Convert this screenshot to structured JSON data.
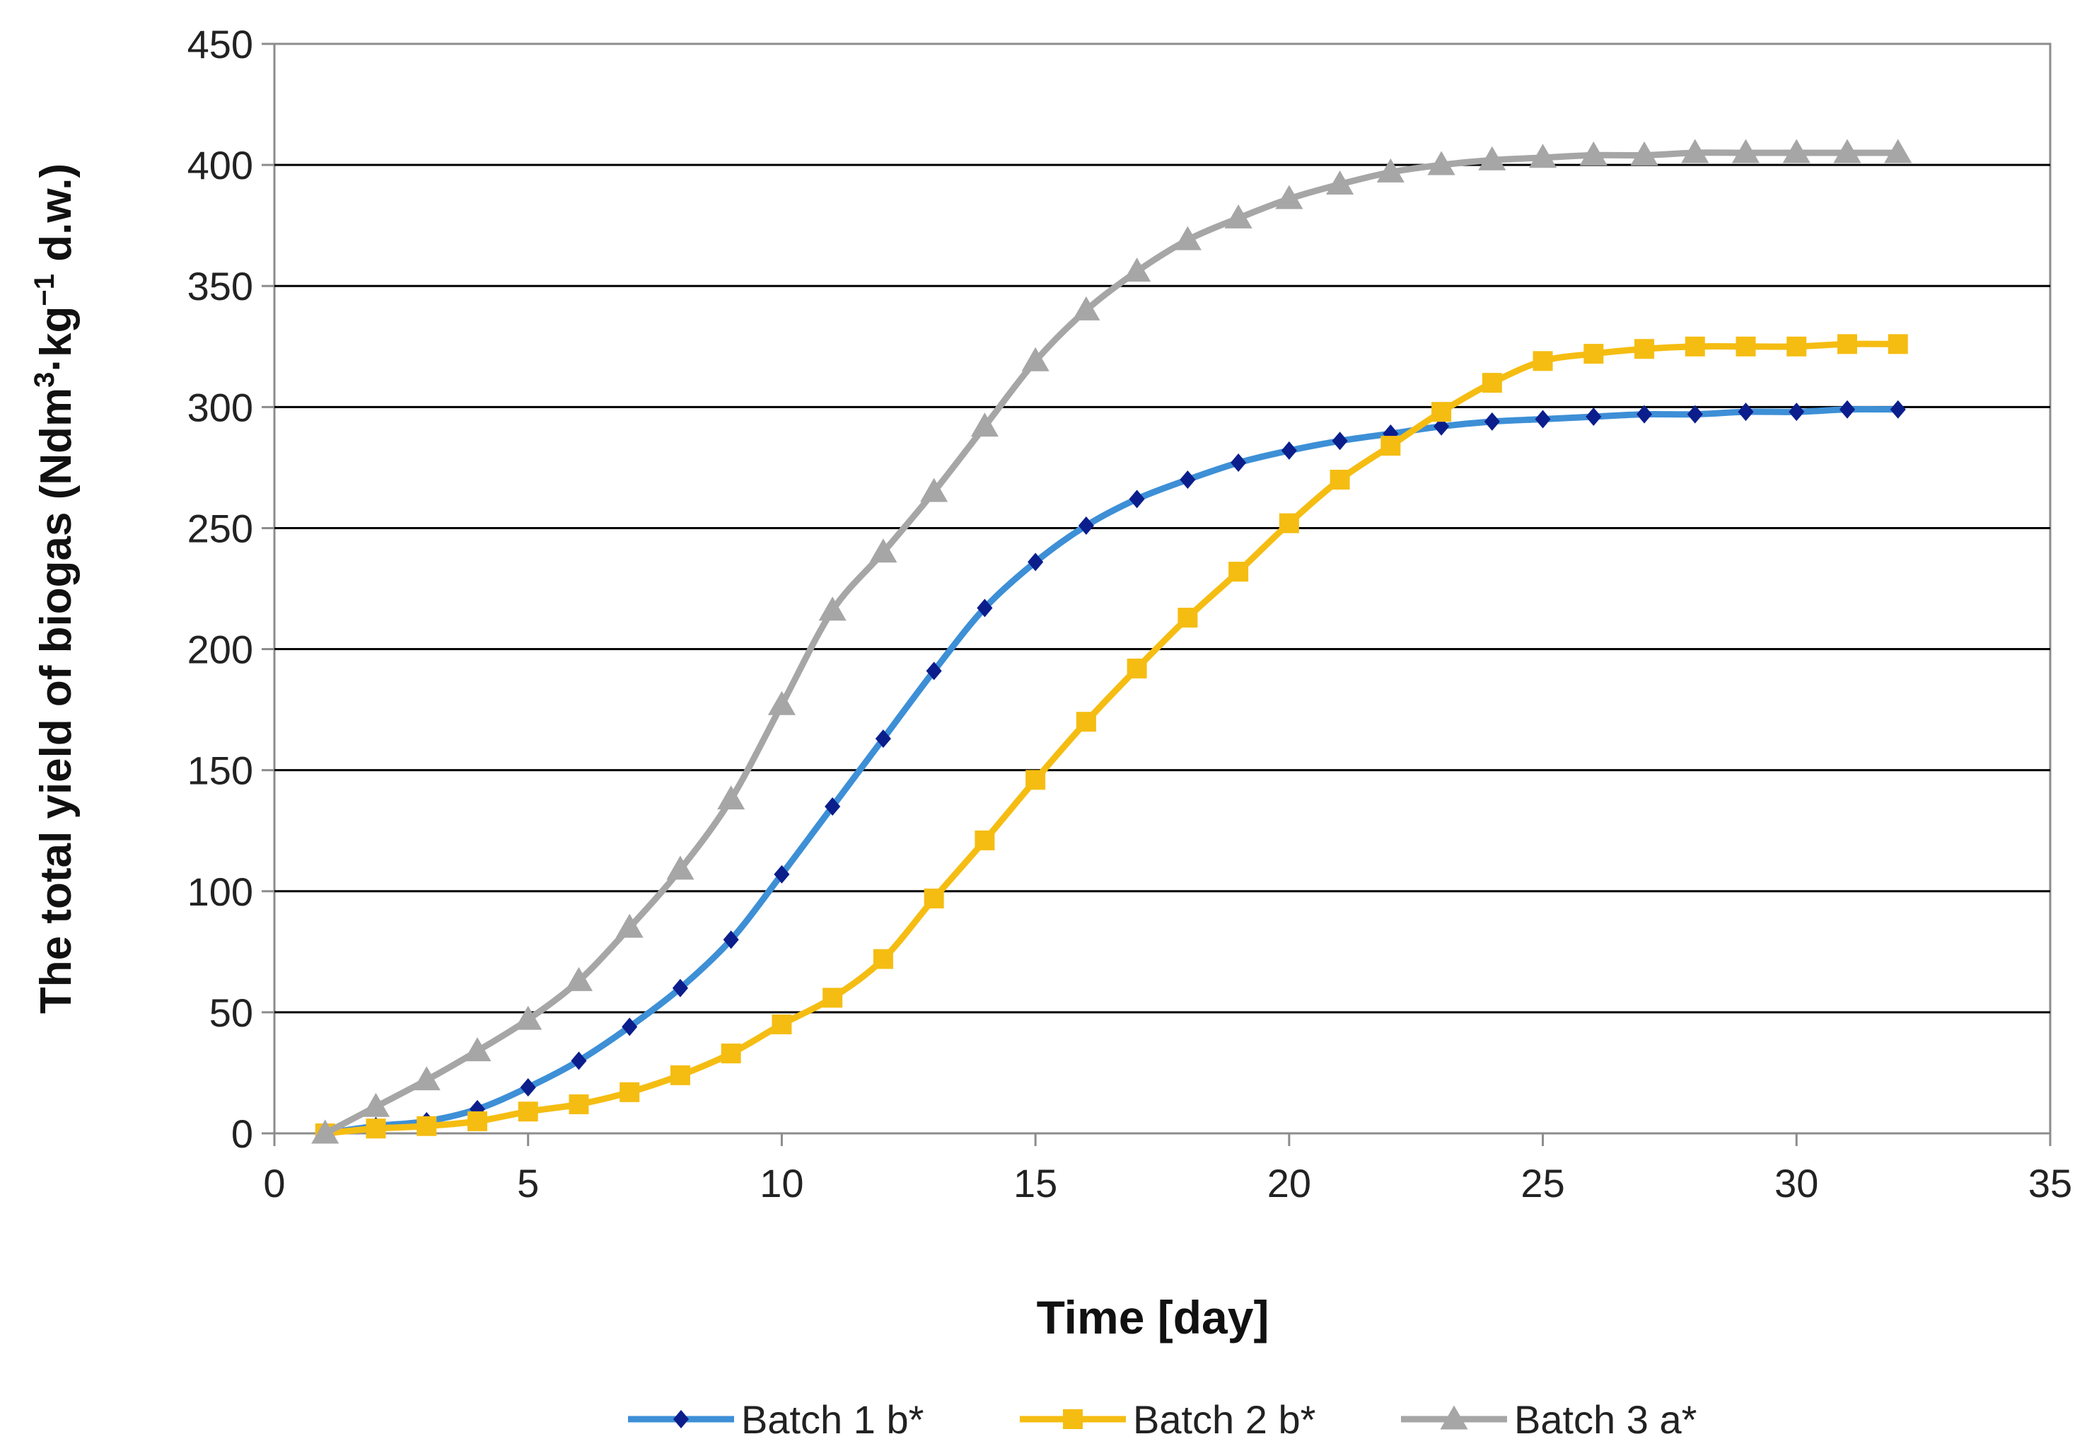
{
  "chart_data": {
    "type": "line",
    "title": "",
    "xlabel": "Time [day]",
    "ylabel": {
      "before": "The total yield of biogas (Ndm",
      "sup1": "3",
      "mid": "·kg",
      "sup2": "−1",
      "after": " d.w.)"
    },
    "xlim": [
      0,
      35
    ],
    "ylim": [
      0,
      450
    ],
    "xticks": [
      0,
      5,
      10,
      15,
      20,
      25,
      30,
      35
    ],
    "yticks": [
      0,
      50,
      100,
      150,
      200,
      250,
      300,
      350,
      400,
      450
    ],
    "grid": "horizontal",
    "legend_position": "bottom",
    "x": [
      1,
      2,
      3,
      4,
      5,
      6,
      7,
      8,
      9,
      10,
      11,
      12,
      13,
      14,
      15,
      16,
      17,
      18,
      19,
      20,
      21,
      22,
      23,
      24,
      25,
      26,
      27,
      28,
      29,
      30,
      31,
      32
    ],
    "series": [
      {
        "name": "Batch 1 b*",
        "color": "#3d8fd6",
        "marker": "diamond",
        "marker_color": "#0b1e8c",
        "values": [
          0,
          3,
          5,
          10,
          19,
          30,
          44,
          60,
          80,
          107,
          135,
          163,
          191,
          217,
          236,
          251,
          262,
          270,
          277,
          282,
          286,
          289,
          292,
          294,
          295,
          296,
          297,
          297,
          298,
          298,
          299,
          299
        ]
      },
      {
        "name": "Batch 2 b*",
        "color": "#f5bd12",
        "marker": "square",
        "marker_color": "#f5bd12",
        "values": [
          0,
          2,
          3,
          5,
          9,
          12,
          17,
          24,
          33,
          45,
          56,
          72,
          97,
          121,
          146,
          170,
          192,
          213,
          232,
          252,
          270,
          284,
          298,
          310,
          319,
          322,
          324,
          325,
          325,
          325,
          326,
          326
        ]
      },
      {
        "name": "Batch 3 a*",
        "color": "#a6a6a6",
        "marker": "triangle",
        "marker_color": "#a6a6a6",
        "values": [
          0,
          11,
          22,
          34,
          47,
          63,
          85,
          109,
          138,
          177,
          216,
          240,
          265,
          292,
          319,
          340,
          356,
          369,
          378,
          386,
          392,
          397,
          400,
          402,
          403,
          404,
          404,
          405,
          405,
          405,
          405,
          405
        ]
      }
    ]
  }
}
